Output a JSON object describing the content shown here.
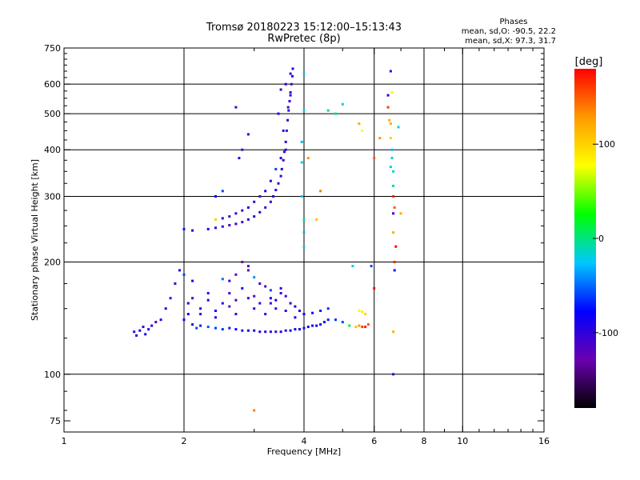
{
  "header": {
    "title_line1": "Tromsø 20180223 15:12:00–15:13:43",
    "title_line2": "RwPretec (8p)"
  },
  "stats": {
    "heading": "Phases",
    "line_o": "mean, sd,O: -90.5, 22.2",
    "line_x": "mean, sd,X:  97.3, 31.7"
  },
  "colorbar": {
    "label": "[deg]",
    "ticks": [
      "100",
      "0",
      "-100"
    ],
    "tick_values": [
      100,
      0,
      -100
    ],
    "range": [
      -180,
      180
    ],
    "colors": [
      "#000000",
      "#6a00b0",
      "#0000ff",
      "#00c8ff",
      "#00ff00",
      "#ffff00",
      "#ff9a00",
      "#ff0000"
    ]
  },
  "chart_data": {
    "type": "scatter",
    "title": "Tromsø 20180223 15:12:00–15:13:43",
    "subtitle": "RwPretec (8p)",
    "xlabel": "Frequency [MHz]",
    "ylabel": "Stationary phase Virtual Height [km]",
    "x_scale": "log",
    "y_scale": "log",
    "xlim": [
      1,
      16
    ],
    "ylim": [
      70,
      750
    ],
    "x_ticks": [
      1,
      2,
      4,
      6,
      8,
      10,
      16
    ],
    "x_tick_labels": [
      "1",
      "2",
      "4",
      "6",
      "8",
      "10",
      "16"
    ],
    "x_gridlines": [
      2,
      4,
      6,
      8,
      10
    ],
    "y_ticks": [
      75,
      100,
      200,
      300,
      400,
      500,
      600,
      750
    ],
    "y_tick_labels": [
      "75",
      "100",
      "200",
      "300",
      "400",
      "500",
      "600",
      "750"
    ],
    "y_gridlines": [
      100,
      200,
      300,
      400,
      500,
      600
    ],
    "grid": true,
    "series": [
      {
        "label_key": "e_layer",
        "points": [
          [
            1.5,
            130,
            -95
          ],
          [
            1.52,
            127,
            -100
          ],
          [
            1.55,
            131,
            -90
          ],
          [
            1.58,
            134,
            -105
          ],
          [
            1.6,
            128,
            -85
          ],
          [
            1.63,
            132,
            -100
          ],
          [
            1.66,
            135,
            -95
          ],
          [
            1.7,
            138,
            -110
          ],
          [
            1.75,
            140,
            -100
          ],
          [
            1.8,
            150,
            -95
          ],
          [
            1.85,
            160,
            -105
          ],
          [
            1.9,
            175,
            -110
          ],
          [
            1.95,
            190,
            -100
          ],
          [
            2.0,
            140,
            -90
          ],
          [
            2.05,
            145,
            -80
          ],
          [
            2.1,
            136,
            -95
          ],
          [
            2.15,
            133,
            -60
          ],
          [
            2.2,
            135,
            -70
          ],
          [
            2.3,
            134,
            -55
          ],
          [
            2.4,
            133,
            -60
          ],
          [
            2.5,
            132,
            -65
          ],
          [
            2.6,
            133,
            -70
          ],
          [
            2.7,
            132,
            -75
          ],
          [
            2.8,
            131,
            -70
          ],
          [
            2.9,
            131,
            -85
          ],
          [
            3.0,
            131,
            -90
          ],
          [
            3.1,
            130,
            -100
          ],
          [
            3.2,
            130,
            -95
          ],
          [
            3.3,
            130,
            -100
          ],
          [
            3.4,
            130,
            -105
          ],
          [
            3.5,
            130,
            -100
          ],
          [
            3.6,
            131,
            -95
          ],
          [
            3.7,
            131,
            -90
          ],
          [
            3.8,
            132,
            -85
          ],
          [
            3.9,
            132,
            -80
          ],
          [
            4.0,
            133,
            -95
          ],
          [
            4.1,
            134,
            -90
          ],
          [
            4.2,
            135,
            -85
          ],
          [
            4.3,
            135,
            -80
          ],
          [
            4.4,
            136,
            -90
          ],
          [
            4.5,
            138,
            -85
          ],
          [
            4.6,
            140,
            -70
          ],
          [
            4.8,
            140,
            -65
          ],
          [
            5.0,
            138,
            -60
          ],
          [
            5.2,
            135,
            10
          ],
          [
            5.4,
            134,
            110
          ],
          [
            5.5,
            135,
            130
          ],
          [
            5.6,
            134,
            160
          ],
          [
            5.7,
            134,
            170
          ],
          [
            5.8,
            136,
            150
          ]
        ]
      },
      {
        "label_key": "e_spread",
        "points": [
          [
            2.05,
            155,
            -90
          ],
          [
            2.1,
            160,
            -110
          ],
          [
            2.2,
            150,
            -100
          ],
          [
            2.3,
            158,
            -95
          ],
          [
            2.4,
            148,
            -80
          ],
          [
            2.5,
            155,
            -100
          ],
          [
            2.6,
            165,
            -110
          ],
          [
            2.7,
            145,
            -100
          ],
          [
            2.8,
            170,
            -90
          ],
          [
            2.9,
            160,
            -105
          ],
          [
            3.0,
            150,
            -100
          ],
          [
            3.1,
            155,
            -110
          ],
          [
            3.2,
            145,
            -95
          ],
          [
            3.3,
            160,
            -85
          ],
          [
            3.4,
            150,
            -100
          ],
          [
            3.5,
            170,
            -105
          ],
          [
            3.6,
            148,
            -95
          ],
          [
            3.7,
            155,
            -100
          ],
          [
            3.8,
            142,
            -90
          ],
          [
            4.0,
            145,
            -80
          ],
          [
            4.2,
            146,
            -75
          ],
          [
            4.4,
            148,
            -70
          ],
          [
            4.6,
            150,
            -65
          ],
          [
            2.5,
            180,
            -50
          ],
          [
            2.7,
            185,
            -120
          ],
          [
            2.9,
            190,
            -130
          ],
          [
            3.1,
            175,
            -110
          ],
          [
            3.3,
            168,
            -60
          ],
          [
            3.5,
            165,
            -100
          ],
          [
            2.8,
            200,
            -130
          ],
          [
            2.9,
            195,
            -115
          ],
          [
            2.6,
            178,
            -100
          ],
          [
            3.0,
            182,
            -40
          ],
          [
            2.3,
            165,
            -105
          ],
          [
            2.2,
            145,
            -100
          ],
          [
            2.4,
            142,
            -95
          ],
          [
            3.2,
            172,
            -115
          ],
          [
            3.4,
            158,
            -95
          ],
          [
            3.6,
            162,
            -110
          ],
          [
            3.8,
            152,
            -90
          ],
          [
            2.6,
            152,
            -125
          ],
          [
            2.7,
            158,
            -120
          ],
          [
            3.0,
            162,
            -115
          ],
          [
            3.3,
            155,
            -110
          ],
          [
            2.1,
            178,
            -80
          ],
          [
            2.0,
            185,
            -60
          ],
          [
            3.9,
            148,
            -95
          ],
          [
            5.5,
            148,
            80
          ],
          [
            5.6,
            147,
            90
          ],
          [
            5.7,
            145,
            100
          ]
        ]
      },
      {
        "label_key": "f_layer",
        "points": [
          [
            2.0,
            245,
            -70
          ],
          [
            2.1,
            243,
            -80
          ],
          [
            2.3,
            245,
            -100
          ],
          [
            2.4,
            247,
            -105
          ],
          [
            2.5,
            249,
            -100
          ],
          [
            2.6,
            251,
            -110
          ],
          [
            2.7,
            253,
            -105
          ],
          [
            2.8,
            256,
            -110
          ],
          [
            2.9,
            260,
            -100
          ],
          [
            3.0,
            265,
            -95
          ],
          [
            3.1,
            272,
            -100
          ],
          [
            3.2,
            280,
            -110
          ],
          [
            3.3,
            290,
            -100
          ],
          [
            3.35,
            300,
            -95
          ],
          [
            3.4,
            312,
            -100
          ],
          [
            3.45,
            325,
            -105
          ],
          [
            3.5,
            340,
            -100
          ],
          [
            3.52,
            355,
            -95
          ],
          [
            3.55,
            375,
            -100
          ],
          [
            3.57,
            395,
            -105
          ],
          [
            3.6,
            420,
            -100
          ],
          [
            3.62,
            450,
            -110
          ],
          [
            3.64,
            480,
            -100
          ],
          [
            3.66,
            510,
            -95
          ],
          [
            3.68,
            540,
            -100
          ],
          [
            3.7,
            570,
            -105
          ],
          [
            3.72,
            600,
            -110
          ],
          [
            3.74,
            630,
            -100
          ],
          [
            3.75,
            660,
            -95
          ],
          [
            3.4,
            355,
            -60
          ],
          [
            3.3,
            330,
            -100
          ],
          [
            3.2,
            310,
            -90
          ],
          [
            3.1,
            300,
            -110
          ],
          [
            3.0,
            290,
            -100
          ],
          [
            2.9,
            280,
            -95
          ],
          [
            2.8,
            275,
            -105
          ],
          [
            2.7,
            270,
            -100
          ],
          [
            2.6,
            265,
            -110
          ],
          [
            2.5,
            262,
            -100
          ],
          [
            3.5,
            380,
            -90
          ],
          [
            3.6,
            400,
            -100
          ],
          [
            3.55,
            450,
            -105
          ],
          [
            3.65,
            520,
            -110
          ],
          [
            3.7,
            560,
            -100
          ],
          [
            3.6,
            600,
            -95
          ],
          [
            3.7,
            640,
            -100
          ],
          [
            3.5,
            580,
            -110
          ],
          [
            3.45,
            500,
            -90
          ],
          [
            2.75,
            380,
            -100
          ],
          [
            2.8,
            400,
            -110
          ],
          [
            2.7,
            520,
            -105
          ],
          [
            2.5,
            310,
            -60
          ],
          [
            2.4,
            300,
            -80
          ],
          [
            2.9,
            440,
            -100
          ],
          [
            2.4,
            260,
            100
          ]
        ]
      },
      {
        "label_key": "f_extra",
        "points": [
          [
            4.0,
            640,
            -20
          ],
          [
            4.0,
            510,
            -20
          ],
          [
            3.95,
            420,
            -30
          ],
          [
            3.95,
            370,
            -20
          ],
          [
            4.0,
            260,
            -10
          ],
          [
            4.0,
            220,
            -20
          ],
          [
            4.0,
            240,
            -30
          ],
          [
            3.95,
            300,
            -25
          ],
          [
            4.1,
            380,
            130
          ],
          [
            4.4,
            310,
            140
          ],
          [
            4.3,
            260,
            110
          ],
          [
            4.6,
            510,
            -10
          ],
          [
            4.8,
            500,
            -10
          ],
          [
            5.0,
            530,
            -20
          ],
          [
            5.5,
            470,
            120
          ],
          [
            5.6,
            450,
            80
          ],
          [
            6.0,
            380,
            150
          ],
          [
            6.2,
            430,
            130
          ],
          [
            6.5,
            560,
            -100
          ],
          [
            6.5,
            520,
            160
          ],
          [
            6.55,
            480,
            120
          ],
          [
            6.6,
            470,
            120
          ],
          [
            6.6,
            430,
            100
          ],
          [
            6.65,
            400,
            -30
          ],
          [
            6.65,
            380,
            -10
          ],
          [
            6.6,
            360,
            -20
          ],
          [
            6.7,
            350,
            -15
          ],
          [
            6.7,
            320,
            -10
          ],
          [
            6.7,
            300,
            170
          ],
          [
            6.75,
            280,
            150
          ],
          [
            6.7,
            270,
            -100
          ],
          [
            6.7,
            240,
            120
          ],
          [
            6.8,
            220,
            180
          ],
          [
            6.75,
            200,
            170
          ],
          [
            6.75,
            190,
            -100
          ],
          [
            6.7,
            130,
            120
          ],
          [
            6.6,
            650,
            -100
          ],
          [
            6.65,
            570,
            80
          ],
          [
            6.9,
            460,
            -10
          ],
          [
            7.0,
            270,
            120
          ],
          [
            6.7,
            100,
            -100
          ],
          [
            6.0,
            170,
            180
          ],
          [
            5.9,
            195,
            -60
          ],
          [
            5.3,
            195,
            -20
          ],
          [
            3.0,
            80,
            140
          ]
        ]
      }
    ]
  }
}
